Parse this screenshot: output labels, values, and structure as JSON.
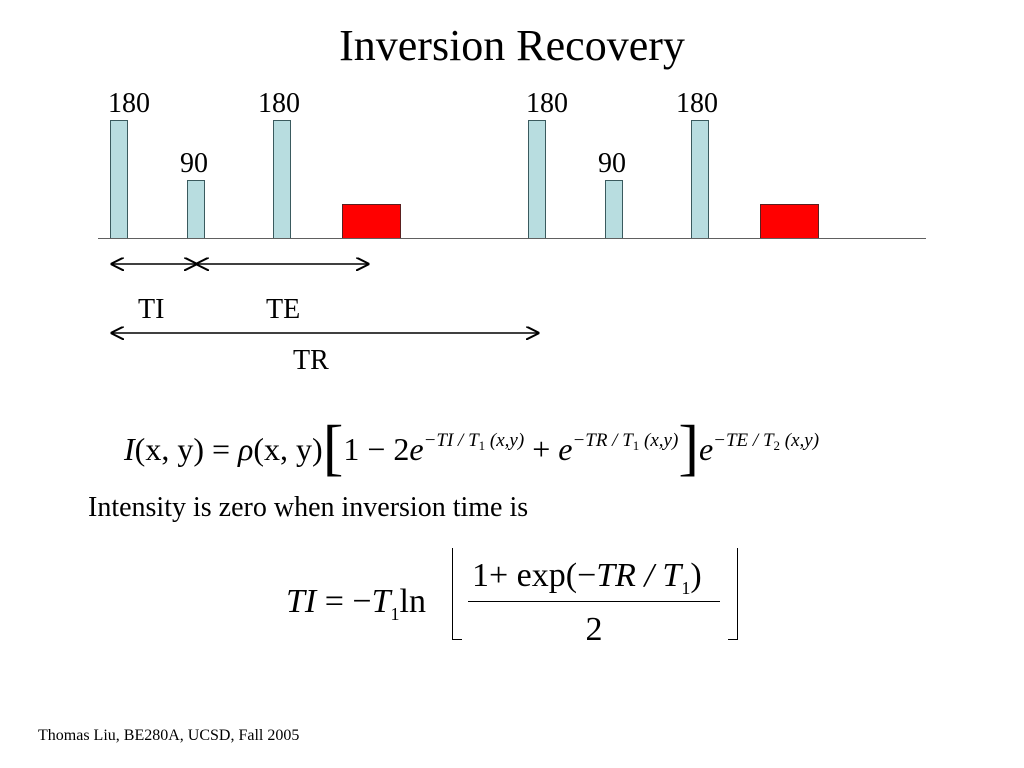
{
  "title": "Inversion Recovery",
  "pulses": [
    {
      "label": "180",
      "type": "inversion"
    },
    {
      "label": "90",
      "type": "excitation"
    },
    {
      "label": "180",
      "type": "refocusing"
    },
    {
      "label": "180",
      "type": "inversion"
    },
    {
      "label": "90",
      "type": "excitation"
    },
    {
      "label": "180",
      "type": "refocusing"
    }
  ],
  "colors": {
    "pulse": "#b8dde0",
    "readout": "#ff0000",
    "axis": "#606060"
  },
  "intervals": {
    "ti": "TI",
    "te": "TE",
    "tr": "TR"
  },
  "equation1": {
    "lhs": "I",
    "args": "(x, y)",
    "eq": " = ",
    "rho": "ρ",
    "one_minus_two": "1 − 2",
    "e": "e",
    "exp1": "−TI / T",
    "exp1_sub": "1",
    "exp1_args": " (x,y)",
    "plus": " + ",
    "exp2": "−TR / T",
    "exp2_sub": "1",
    "exp2_args": " (x,y)",
    "exp3": "−TE / T",
    "exp3_sub": "2",
    "exp3_args": " (x,y)"
  },
  "caption": "Intensity is zero when inversion time is",
  "equation2": {
    "lhs": "TI",
    "eq": " = −",
    "t": "T",
    "t_sub": "1",
    "ln": "ln",
    "numerator": "1+ exp(−",
    "num_tr": "TR / T",
    "num_sub": "1",
    "num_close": ")",
    "denominator": "2"
  },
  "footer": "Thomas Liu, BE280A, UCSD, Fall 2005"
}
